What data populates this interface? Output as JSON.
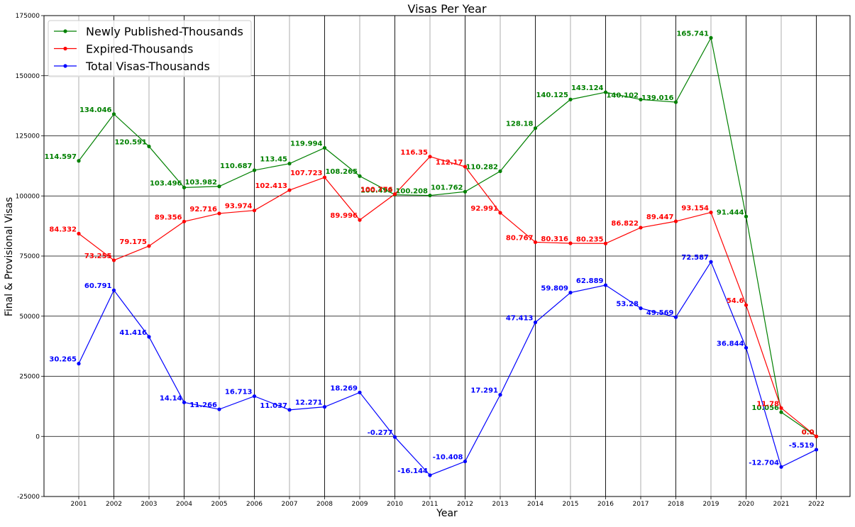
{
  "chart_data": {
    "type": "line",
    "title": "Visas Per Year",
    "xlabel": "Year",
    "ylabel": "Final & Provisional Visas",
    "ylim": [
      -25000,
      175000
    ],
    "yticks": [
      -25000,
      0,
      25000,
      50000,
      75000,
      100000,
      125000,
      150000,
      175000
    ],
    "grid": true,
    "legend_position": "top-left",
    "categories": [
      "2001",
      "2002",
      "2003",
      "2004",
      "2005",
      "2006",
      "2007",
      "2008",
      "2009",
      "2010",
      "2011",
      "2012",
      "2013",
      "2014",
      "2015",
      "2016",
      "2017",
      "2018",
      "2019",
      "2020",
      "2021",
      "2022"
    ],
    "series": [
      {
        "name": "Newly Published-Thousands",
        "color": "#008000",
        "values": [
          114597,
          134046,
          120591,
          103496,
          103982,
          110687,
          113450,
          119994,
          108265,
          100499,
          100208,
          101762,
          110282,
          128180,
          140125,
          143124,
          140102,
          139016,
          165741,
          91444,
          10056,
          0
        ],
        "labels": [
          "114.597",
          "134.046",
          "120.591",
          "103.496",
          "103.982",
          "110.687",
          "113.45",
          "119.994",
          "108.265",
          "100.499",
          "100.208",
          "101.762",
          "110.282",
          "128.18",
          "140.125",
          "143.124",
          "140.102",
          "139.016",
          "165.741",
          "91.444",
          "10.056",
          "0.0"
        ]
      },
      {
        "name": "Expired-Thousands",
        "color": "#ff0000",
        "values": [
          84332,
          73255,
          79175,
          89356,
          92716,
          93974,
          102413,
          107723,
          89996,
          100776,
          116350,
          112170,
          92991,
          80767,
          80316,
          80235,
          86822,
          89447,
          93154,
          54600,
          11780,
          0
        ],
        "labels": [
          "84.332",
          "73.255",
          "79.175",
          "89.356",
          "92.716",
          "93.974",
          "102.413",
          "107.723",
          "89.996",
          "100.776",
          "116.35",
          "112.17",
          "92.991",
          "80.767",
          "80.316",
          "80.235",
          "86.822",
          "89.447",
          "93.154",
          "54.6",
          "11.78",
          "0.0"
        ]
      },
      {
        "name": "Total Visas-Thousands",
        "color": "#0000ff",
        "values": [
          30265,
          60791,
          41416,
          14140,
          11266,
          16713,
          11037,
          12271,
          18269,
          -277,
          -16144,
          -10408,
          17291,
          47413,
          59809,
          62889,
          53280,
          49569,
          72587,
          36844,
          -12704,
          -5519
        ],
        "labels": [
          "30.265",
          "60.791",
          "41.416",
          "14.14",
          "11.266",
          "16.713",
          "11.037",
          "12.271",
          "18.269",
          "-0.277",
          "-16.144",
          "-10.408",
          "17.291",
          "47.413",
          "59.809",
          "62.889",
          "53.28",
          "49.569",
          "72.587",
          "36.844",
          "-12.704",
          "-5.519"
        ]
      }
    ]
  }
}
